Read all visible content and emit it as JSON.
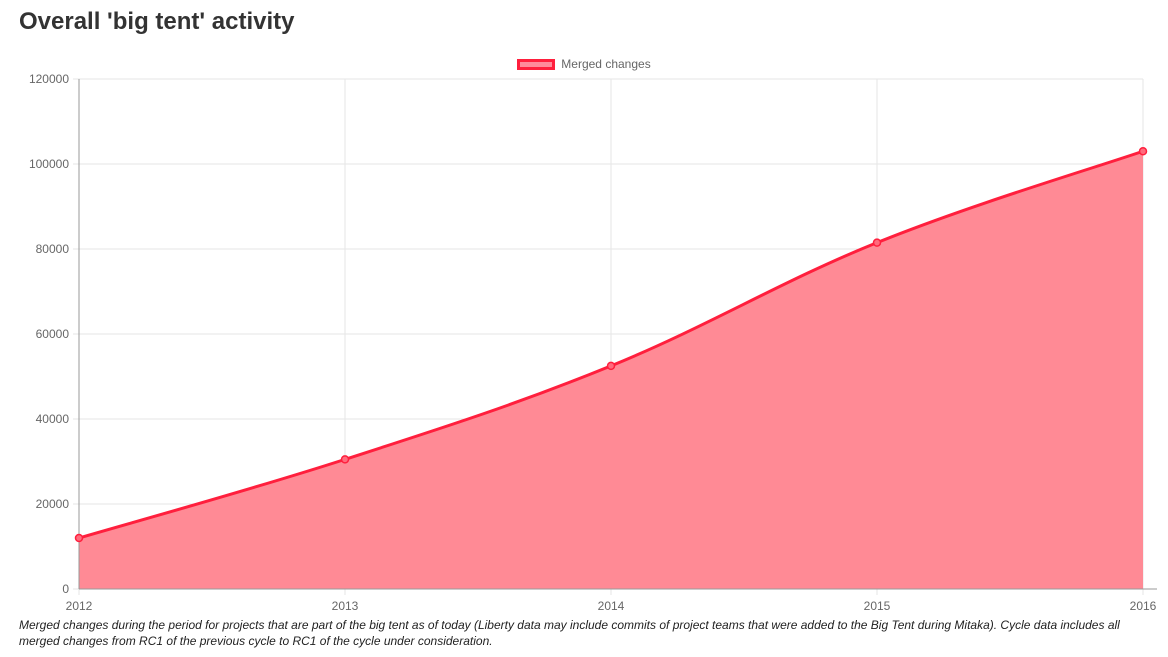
{
  "page": {
    "title": "Overall 'big tent' activity",
    "caption": "Merged changes during the period for projects that are part of the big tent as of today (Liberty data may include commits of project teams that were added to the Big Tent during Mitaka). Cycle data includes all merged changes from RC1 of the previous cycle to RC1 of the cycle under consideration."
  },
  "chart_data": {
    "type": "area",
    "title": "",
    "xlabel": "",
    "ylabel": "",
    "categories": [
      "2012",
      "2013",
      "2014",
      "2015",
      "2016"
    ],
    "series": [
      {
        "name": "Merged changes",
        "values": [
          12000,
          30500,
          52500,
          81500,
          103000
        ],
        "line_color": "#ff1f3d",
        "fill_color": "#ff8a95"
      }
    ],
    "yticks": [
      "0",
      "20000",
      "40000",
      "60000",
      "80000",
      "100000",
      "120000"
    ],
    "ylim": [
      0,
      120000
    ],
    "grid": true,
    "legend": "top-center"
  }
}
